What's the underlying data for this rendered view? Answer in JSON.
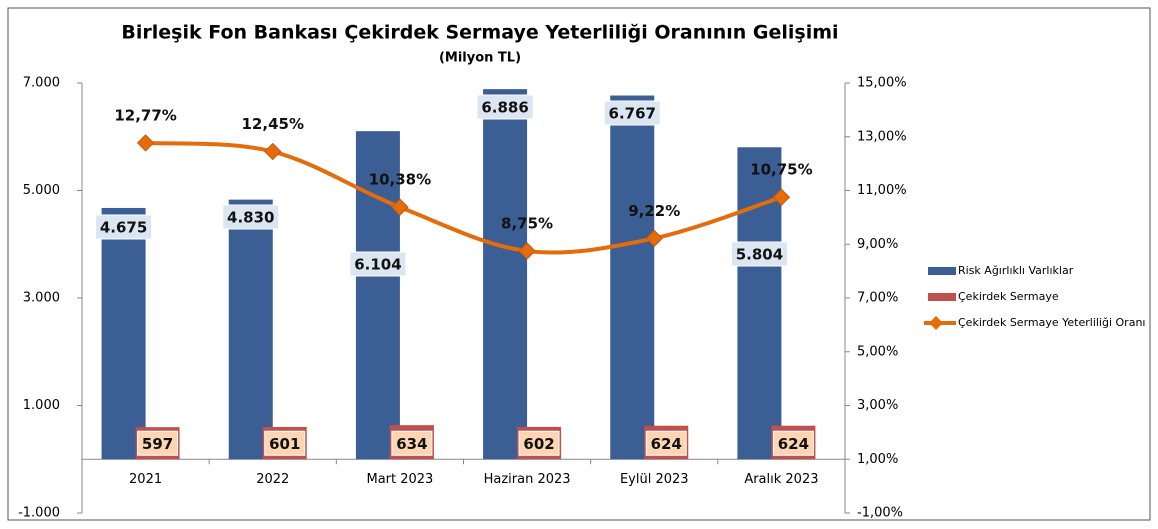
{
  "chart_data": {
    "type": "bar_line_combo",
    "title": "Birleşik Fon Bankası Çekirdek Sermaye Yeterliliği Oranının Gelişimi",
    "subtitle": "(Milyon TL)",
    "categories": [
      "2021",
      "2022",
      "Mart 2023",
      "Haziran 2023",
      "Eylül 2023",
      "Aralık 2023"
    ],
    "series": [
      {
        "name": "Risk Ağırlıklı Varlıklar",
        "type": "bar",
        "color": "#3b5f95",
        "values": [
          4675,
          4830,
          6104,
          6886,
          6767,
          5804
        ],
        "value_labels": [
          "4.675",
          "4.830",
          "6.104",
          "6.886",
          "6.767",
          "5.804"
        ]
      },
      {
        "name": "Çekirdek Sermaye",
        "type": "bar",
        "color": "#c0504d",
        "values": [
          597,
          601,
          634,
          602,
          624,
          624
        ],
        "value_labels": [
          "597",
          "601",
          "634",
          "602",
          "624",
          "624"
        ]
      },
      {
        "name": "Çekirdek Sermaye Yeterliliği Oranı",
        "type": "line",
        "axis": "y2",
        "color": "#e46c0a",
        "values": [
          12.77,
          12.45,
          10.38,
          8.75,
          9.22,
          10.75
        ],
        "value_labels": [
          "12,77%",
          "12,45%",
          "10,38%",
          "8,75%",
          "9,22%",
          "10,75%"
        ]
      }
    ],
    "ylim": [
      -1000,
      7000
    ],
    "yticks": [
      {
        "value": -1000,
        "label": "-1.000"
      },
      {
        "value": 1000,
        "label": "1.000"
      },
      {
        "value": 3000,
        "label": "3.000"
      },
      {
        "value": 5000,
        "label": "5.000"
      },
      {
        "value": 7000,
        "label": "7.000"
      }
    ],
    "y2lim": [
      -1,
      15
    ],
    "y2ticks": [
      {
        "value": -1,
        "label": "-1,00%"
      },
      {
        "value": 1,
        "label": "1,00%"
      },
      {
        "value": 3,
        "label": "3,00%"
      },
      {
        "value": 5,
        "label": "5,00%"
      },
      {
        "value": 7,
        "label": "7,00%"
      },
      {
        "value": 9,
        "label": "9,00%"
      },
      {
        "value": 11,
        "label": "11,00%"
      },
      {
        "value": 13,
        "label": "13,00%"
      },
      {
        "value": 15,
        "label": "15,00%"
      }
    ],
    "legend": "right"
  }
}
